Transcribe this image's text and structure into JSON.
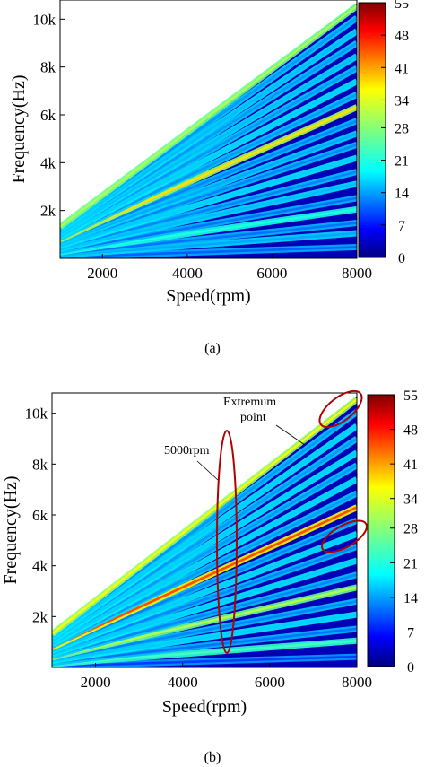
{
  "chart_data": [
    {
      "type": "heatmap",
      "subtype": "campbell-order-spectrum",
      "panel_label": "(a)",
      "xlabel": "Speed(rpm)",
      "ylabel": "Frequency(Hz)",
      "xlim": [
        1000,
        8000
      ],
      "ylim": [
        0,
        10800
      ],
      "x_ticks": [
        2000,
        4000,
        6000,
        8000
      ],
      "y_ticks": [
        {
          "value": 2000,
          "label": "2k"
        },
        {
          "value": 4000,
          "label": "4k"
        },
        {
          "value": 6000,
          "label": "6k"
        },
        {
          "value": 8000,
          "label": "8k"
        },
        {
          "value": 10000,
          "label": "10k"
        }
      ],
      "colorbar": {
        "min": 0,
        "max": 55,
        "ticks": [
          0,
          7,
          14,
          21,
          28,
          34,
          41,
          48,
          55
        ],
        "colormap": "jet"
      },
      "orders": [
        {
          "freq_at_8000": 470,
          "intensity": 12
        },
        {
          "freq_at_8000": 1050,
          "intensity": 16
        },
        {
          "freq_at_8000": 1480,
          "intensity": 13
        },
        {
          "freq_at_8000": 2050,
          "intensity": 22
        },
        {
          "freq_at_8000": 2520,
          "intensity": 13
        },
        {
          "freq_at_8000": 3120,
          "intensity": 17
        },
        {
          "freq_at_8000": 3620,
          "intensity": 14
        },
        {
          "freq_at_8000": 4200,
          "intensity": 18
        },
        {
          "freq_at_8000": 4750,
          "intensity": 14
        },
        {
          "freq_at_8000": 5220,
          "intensity": 16
        },
        {
          "freq_at_8000": 5750,
          "intensity": 14
        },
        {
          "freq_at_8000": 6320,
          "intensity": 36
        },
        {
          "freq_at_8000": 6850,
          "intensity": 15
        },
        {
          "freq_at_8000": 7400,
          "intensity": 18
        },
        {
          "freq_at_8000": 7950,
          "intensity": 15
        },
        {
          "freq_at_8000": 8450,
          "intensity": 17
        },
        {
          "freq_at_8000": 9000,
          "intensity": 15
        },
        {
          "freq_at_8000": 9500,
          "intensity": 17
        },
        {
          "freq_at_8000": 10050,
          "intensity": 15
        },
        {
          "freq_at_8000": 10550,
          "intensity": 30
        }
      ],
      "annotations": []
    },
    {
      "type": "heatmap",
      "subtype": "campbell-order-spectrum",
      "panel_label": "(b)",
      "xlabel": "Speed(rpm)",
      "ylabel": "Frequency(Hz)",
      "xlim": [
        1000,
        8000
      ],
      "ylim": [
        0,
        10800
      ],
      "x_ticks": [
        2000,
        4000,
        6000,
        8000
      ],
      "y_ticks": [
        {
          "value": 2000,
          "label": "2k"
        },
        {
          "value": 4000,
          "label": "4k"
        },
        {
          "value": 6000,
          "label": "6k"
        },
        {
          "value": 8000,
          "label": "8k"
        },
        {
          "value": 10000,
          "label": "10k"
        }
      ],
      "colorbar": {
        "min": 0,
        "max": 55,
        "ticks": [
          0,
          7,
          14,
          21,
          28,
          34,
          41,
          48,
          55
        ],
        "colormap": "jet"
      },
      "orders": [
        {
          "freq_at_8000": 420,
          "intensity": 10
        },
        {
          "freq_at_8000": 1050,
          "intensity": 24
        },
        {
          "freq_at_8000": 1520,
          "intensity": 13
        },
        {
          "freq_at_8000": 2080,
          "intensity": 18
        },
        {
          "freq_at_8000": 2600,
          "intensity": 14
        },
        {
          "freq_at_8000": 3150,
          "intensity": 30
        },
        {
          "freq_at_8000": 3650,
          "intensity": 14
        },
        {
          "freq_at_8000": 4200,
          "intensity": 18
        },
        {
          "freq_at_8000": 4750,
          "intensity": 14
        },
        {
          "freq_at_8000": 5250,
          "intensity": 18
        },
        {
          "freq_at_8000": 5780,
          "intensity": 14
        },
        {
          "freq_at_8000": 6300,
          "intensity": 44
        },
        {
          "freq_at_8000": 6850,
          "intensity": 15
        },
        {
          "freq_at_8000": 7400,
          "intensity": 18
        },
        {
          "freq_at_8000": 7950,
          "intensity": 15
        },
        {
          "freq_at_8000": 8450,
          "intensity": 18
        },
        {
          "freq_at_8000": 9000,
          "intensity": 15
        },
        {
          "freq_at_8000": 9500,
          "intensity": 18
        },
        {
          "freq_at_8000": 10050,
          "intensity": 15
        },
        {
          "freq_at_8000": 10550,
          "intensity": 34
        }
      ],
      "annotations": [
        {
          "text": "5000rpm",
          "target": "vertical ellipse at 5000 rpm"
        },
        {
          "text": "Extremum point",
          "lines": [
            "Extremum",
            "point"
          ],
          "target": "ellipse at 8000 rpm, ~10.5k Hz"
        }
      ]
    }
  ]
}
